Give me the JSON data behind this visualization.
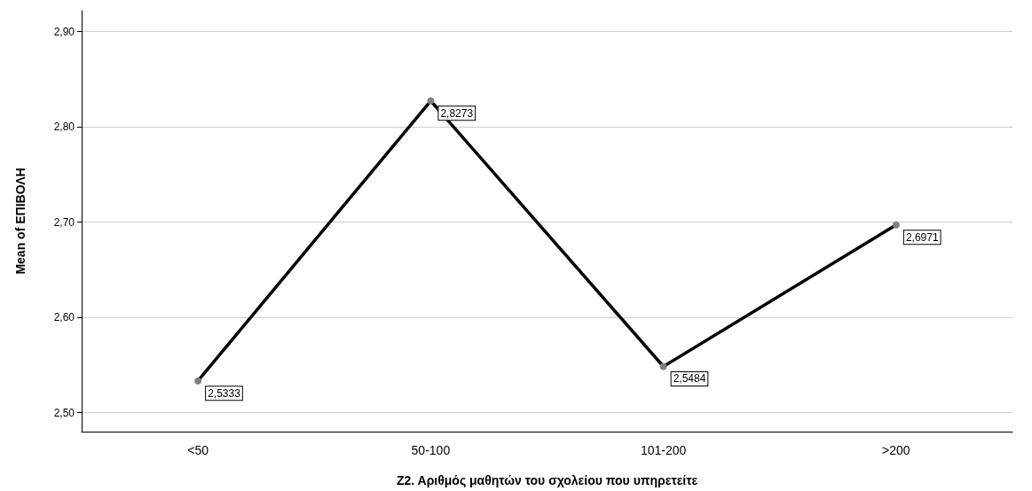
{
  "chart_data": {
    "type": "line",
    "xlabel": "Ζ2. Αριθμός μαθητών του σχολείου που υπηρετείτε",
    "ylabel": "Mean of ΕΠΙΒΟΛΗ",
    "categories": [
      "<50",
      "50-100",
      "101-200",
      ">200"
    ],
    "series": [
      {
        "color": "#000000",
        "values": [
          2.5333,
          2.8273,
          2.5484,
          2.6971
        ],
        "value_labels": [
          "2,5333",
          "2,8273",
          "2,5484",
          "2,6971"
        ]
      }
    ],
    "ylim": [
      2.48,
      2.922
    ],
    "yticks": [
      {
        "value": 2.5,
        "label": "2,50"
      },
      {
        "value": 2.6,
        "label": "2,60"
      },
      {
        "value": 2.7,
        "label": "2,70"
      },
      {
        "value": 2.8,
        "label": "2,80"
      },
      {
        "value": 2.9,
        "label": "2,90"
      }
    ],
    "grid": "y",
    "marker": "circle",
    "line_style": "solid"
  }
}
